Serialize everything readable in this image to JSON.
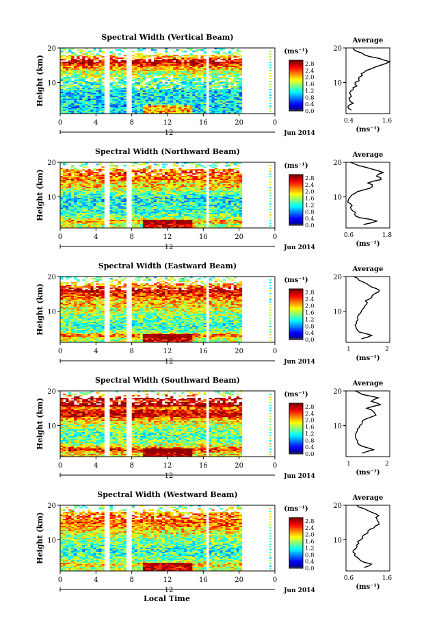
{
  "figure": {
    "xlabel": "Local Time",
    "date_label": "Jun 2014",
    "day_label": "12",
    "colorbar_unit": "(ms⁻¹)",
    "avg_unit": "(ms⁻¹)",
    "avg_title": "Average",
    "ylabel": "Height (km)"
  },
  "chart_data": [
    {
      "type": "heatmap",
      "title": "Spectral Width (Vertical Beam)",
      "xlabel": "Local Time",
      "ylabel": "Height (km)",
      "xlim": [
        0,
        24
      ],
      "x_ticks": [
        "0",
        "4",
        "8",
        "12",
        "16",
        "20",
        "0"
      ],
      "ylim": [
        1,
        20
      ],
      "y_ticks": [
        "10",
        "20"
      ],
      "colorbar": {
        "ticks": [
          "0.0",
          "0.4",
          "0.8",
          "1.2",
          "1.6",
          "2.0",
          "2.4",
          "2.8"
        ],
        "range": [
          0,
          3.0
        ]
      },
      "data_gaps_hours": [
        [
          5.5,
          6.0
        ],
        [
          7.9,
          8.5
        ],
        [
          17.6,
          18.0
        ]
      ],
      "average": {
        "title": "Average",
        "xlim": [
          0.4,
          1.6
        ],
        "x_ticks": [
          "0.4",
          "1.6"
        ],
        "y_ticks": [
          "10",
          "20"
        ],
        "height_km": [
          2,
          3,
          4,
          5,
          6,
          7,
          8,
          9,
          10,
          11,
          12,
          13,
          14,
          15,
          16,
          17,
          18,
          19,
          20
        ],
        "values": [
          0.55,
          0.45,
          0.6,
          0.5,
          0.55,
          0.5,
          0.6,
          0.7,
          0.65,
          0.75,
          0.85,
          0.9,
          1.1,
          1.35,
          1.6,
          1.3,
          0.9,
          0.7,
          0.6
        ]
      }
    },
    {
      "type": "heatmap",
      "title": "Spectral Width (Northward Beam)",
      "xlabel": "Local Time",
      "ylabel": "Height (km)",
      "xlim": [
        0,
        24
      ],
      "x_ticks": [
        "0",
        "4",
        "8",
        "12",
        "16",
        "20",
        "0"
      ],
      "ylim": [
        1,
        20
      ],
      "y_ticks": [
        "10",
        "20"
      ],
      "colorbar": {
        "ticks": [
          "0.0",
          "0.4",
          "0.8",
          "1.2",
          "1.6",
          "2.0",
          "2.4",
          "2.8"
        ],
        "range": [
          0,
          3.0
        ]
      },
      "data_gaps_hours": [
        [
          5.5,
          6.0
        ],
        [
          7.9,
          8.5
        ],
        [
          17.6,
          18.0
        ]
      ],
      "average": {
        "title": "Average",
        "xlim": [
          0.5,
          1.5
        ],
        "x_ticks": [
          "0.6",
          "1.8"
        ],
        "y_ticks": [
          "10",
          "20"
        ],
        "height_km": [
          2,
          3,
          4,
          5,
          6,
          7,
          8,
          9,
          10,
          11,
          12,
          13,
          14,
          15,
          16,
          17,
          18,
          19,
          20
        ],
        "values": [
          0.9,
          1.2,
          0.8,
          0.7,
          0.65,
          0.6,
          0.6,
          0.55,
          0.6,
          0.7,
          0.9,
          1.1,
          1.0,
          1.3,
          1.2,
          1.35,
          1.1,
          0.8,
          0.6
        ]
      }
    },
    {
      "type": "heatmap",
      "title": "Spectral Width (Eastward Beam)",
      "xlabel": "Local Time",
      "ylabel": "Height (km)",
      "xlim": [
        0,
        24
      ],
      "x_ticks": [
        "0",
        "4",
        "8",
        "12",
        "16",
        "20",
        "0"
      ],
      "ylim": [
        1,
        20
      ],
      "y_ticks": [
        "10",
        "20"
      ],
      "colorbar": {
        "ticks": [
          "0.0",
          "0.4",
          "0.8",
          "1.2",
          "1.6",
          "2.0",
          "2.4",
          "2.8"
        ],
        "range": [
          0,
          3.0
        ]
      },
      "data_gaps_hours": [
        [
          5.5,
          6.0
        ],
        [
          7.9,
          8.5
        ],
        [
          17.6,
          18.0
        ]
      ],
      "average": {
        "title": "Average",
        "xlim": [
          0.3,
          2.0
        ],
        "x_ticks": [
          "1",
          "2"
        ],
        "y_ticks": [
          "10",
          "20"
        ],
        "height_km": [
          2,
          3,
          4,
          5,
          6,
          7,
          8,
          9,
          10,
          11,
          12,
          13,
          14,
          15,
          16,
          17,
          18,
          19,
          20
        ],
        "values": [
          0.9,
          1.3,
          0.8,
          0.7,
          0.65,
          0.7,
          0.75,
          0.8,
          0.9,
          1.0,
          1.1,
          1.05,
          1.3,
          1.4,
          1.6,
          1.3,
          1.1,
          0.8,
          0.6
        ]
      }
    },
    {
      "type": "heatmap",
      "title": "Spectral Width (Southward Beam)",
      "xlabel": "Local Time",
      "ylabel": "Height (km)",
      "xlim": [
        0,
        24
      ],
      "x_ticks": [
        "0",
        "4",
        "8",
        "12",
        "16",
        "20",
        "0"
      ],
      "ylim": [
        1,
        20
      ],
      "y_ticks": [
        "10",
        "20"
      ],
      "colorbar": {
        "ticks": [
          "0.0",
          "0.4",
          "0.8",
          "1.2",
          "1.6",
          "2.0",
          "2.4",
          "2.8"
        ],
        "range": [
          0,
          3.0
        ]
      },
      "data_gaps_hours": [
        [
          5.5,
          6.0
        ],
        [
          7.9,
          8.5
        ],
        [
          17.6,
          18.0
        ]
      ],
      "average": {
        "title": "Average",
        "xlim": [
          0.3,
          2.2
        ],
        "x_ticks": [
          "1",
          "2"
        ],
        "y_ticks": [
          "10",
          "20"
        ],
        "height_km": [
          2,
          3,
          4,
          5,
          6,
          7,
          8,
          9,
          10,
          11,
          12,
          13,
          14,
          15,
          16,
          17,
          18,
          19,
          20
        ],
        "values": [
          1.0,
          1.5,
          1.0,
          0.8,
          0.75,
          0.7,
          0.75,
          0.8,
          0.9,
          1.0,
          1.2,
          1.6,
          1.5,
          1.2,
          1.8,
          1.4,
          1.7,
          1.0,
          0.7
        ]
      }
    },
    {
      "type": "heatmap",
      "title": "Spectral Width (Westward Beam)",
      "xlabel": "Local Time",
      "ylabel": "Height (km)",
      "xlim": [
        0,
        24
      ],
      "x_ticks": [
        "0",
        "4",
        "8",
        "12",
        "16",
        "20",
        "0"
      ],
      "ylim": [
        1,
        20
      ],
      "y_ticks": [
        "10",
        "20"
      ],
      "colorbar": {
        "ticks": [
          "0.0",
          "0.4",
          "0.8",
          "1.2",
          "1.6",
          "2.0",
          "2.4",
          "2.8"
        ],
        "range": [
          0,
          3.0
        ]
      },
      "data_gaps_hours": [
        [
          5.5,
          6.0
        ],
        [
          7.9,
          8.5
        ],
        [
          17.6,
          18.0
        ]
      ],
      "average": {
        "title": "Average",
        "xlim": [
          0.4,
          1.6
        ],
        "x_ticks": [
          "0.6",
          "1.6"
        ],
        "y_ticks": [
          "10",
          "20"
        ],
        "height_km": [
          2,
          3,
          4,
          5,
          6,
          7,
          8,
          9,
          10,
          11,
          12,
          13,
          14,
          15,
          16,
          17,
          18,
          19,
          20
        ],
        "values": [
          0.9,
          1.1,
          0.8,
          0.7,
          0.65,
          0.6,
          0.7,
          0.75,
          0.8,
          0.85,
          1.0,
          1.05,
          1.2,
          1.3,
          1.25,
          1.3,
          1.1,
          0.9,
          0.7
        ]
      }
    }
  ]
}
